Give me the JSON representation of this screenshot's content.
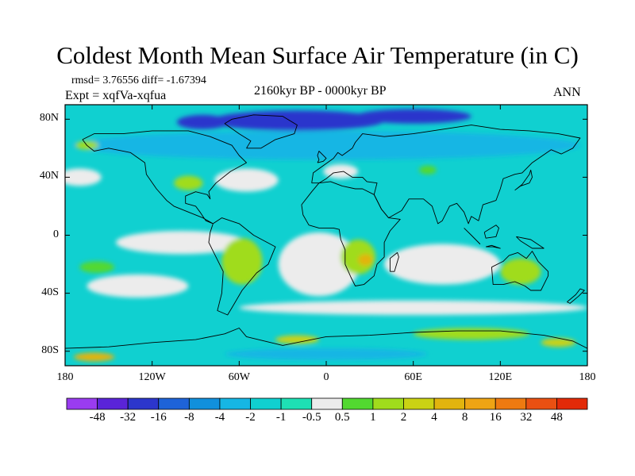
{
  "chart_data": {
    "type": "heatmap",
    "title": "Coldest Month Mean Surface Air Temperature (in C)",
    "stats": "rmsd= 3.76556 diff= -1.67394",
    "experiment": "Expt = xqfVa-xqfua",
    "period": "2160kyr BP - 0000kyr BP",
    "season": "ANN",
    "xlabel": "",
    "ylabel": "",
    "xlim": [
      -180,
      180
    ],
    "ylim": [
      -90,
      90
    ],
    "lon_ticks": [
      {
        "value": -180,
        "label": "180"
      },
      {
        "value": -120,
        "label": "120W"
      },
      {
        "value": -60,
        "label": "60W"
      },
      {
        "value": 0,
        "label": "0"
      },
      {
        "value": 60,
        "label": "60E"
      },
      {
        "value": 120,
        "label": "120E"
      },
      {
        "value": 180,
        "label": "180"
      }
    ],
    "lat_ticks": [
      {
        "value": 80,
        "label": "80N"
      },
      {
        "value": 40,
        "label": "40N"
      },
      {
        "value": 0,
        "label": "0"
      },
      {
        "value": -40,
        "label": "40S"
      },
      {
        "value": -80,
        "label": "80S"
      }
    ],
    "colorbar": {
      "levels": [
        "-48",
        "-32",
        "-16",
        "-8",
        "-4",
        "-2",
        "-1",
        "-0.5",
        "0.5",
        "1",
        "2",
        "4",
        "8",
        "16",
        "32",
        "48"
      ],
      "colors": [
        "#9a3cf0",
        "#5a24d8",
        "#2c36cc",
        "#1e63d8",
        "#1190dc",
        "#16b6e4",
        "#10d0d0",
        "#1ee0b4",
        "#ececec",
        "#52d830",
        "#a0dc1c",
        "#cad214",
        "#e2b40e",
        "#eea414",
        "#ee7a10",
        "#ea5012",
        "#e22a08"
      ]
    },
    "regions": [
      {
        "name": "arctic-basin",
        "lon": -20,
        "lat": 79,
        "rx": 60,
        "ry": 7,
        "level": 2
      },
      {
        "name": "siberia-cold",
        "lon": 60,
        "lat": 82,
        "rx": 40,
        "ry": 5,
        "level": 2
      },
      {
        "name": "canada-arctic",
        "lon": -85,
        "lat": 78,
        "rx": 18,
        "ry": 5,
        "level": 2
      },
      {
        "name": "northern-band",
        "lon": 0,
        "lat": 62,
        "rx": 175,
        "ry": 10,
        "level": 5
      },
      {
        "name": "north-atlantic-near-zero",
        "lon": -55,
        "lat": 38,
        "rx": 22,
        "ry": 8,
        "level": 8
      },
      {
        "name": "north-pacific-near-zero",
        "lon": -170,
        "lat": 40,
        "rx": 15,
        "ry": 6,
        "level": 8
      },
      {
        "name": "europe-near-zero",
        "lon": 10,
        "lat": 44,
        "rx": 12,
        "ry": 5,
        "level": 8
      },
      {
        "name": "equatorial-pacific-near-zero",
        "lon": -100,
        "lat": -5,
        "rx": 45,
        "ry": 8,
        "level": 8
      },
      {
        "name": "south-atlantic-near-zero",
        "lon": -5,
        "lat": -20,
        "rx": 28,
        "ry": 22,
        "level": 8
      },
      {
        "name": "indian-ocean-near-zero",
        "lon": 80,
        "lat": -20,
        "rx": 40,
        "ry": 14,
        "level": 8
      },
      {
        "name": "southern-ocean-near-zero",
        "lon": 60,
        "lat": -50,
        "rx": 120,
        "ry": 5,
        "level": 8
      },
      {
        "name": "south-pacific-near-zero",
        "lon": -130,
        "lat": -35,
        "rx": 35,
        "ry": 8,
        "level": 8
      },
      {
        "name": "south-america-warm",
        "lon": -58,
        "lat": -18,
        "rx": 14,
        "ry": 16,
        "level": 10
      },
      {
        "name": "africa-warm",
        "lon": 22,
        "lat": -15,
        "rx": 12,
        "ry": 12,
        "level": 10
      },
      {
        "name": "africa-hot",
        "lon": 27,
        "lat": -17,
        "rx": 5,
        "ry": 4,
        "level": 12
      },
      {
        "name": "australia-warm",
        "lon": 134,
        "lat": -25,
        "rx": 14,
        "ry": 9,
        "level": 10
      },
      {
        "name": "pacific-warm-patch",
        "lon": -158,
        "lat": -22,
        "rx": 12,
        "ry": 4,
        "level": 9
      },
      {
        "name": "north-america-warm",
        "lon": -95,
        "lat": 36,
        "rx": 10,
        "ry": 5,
        "level": 10
      },
      {
        "name": "asia-warm",
        "lon": 70,
        "lat": 45,
        "rx": 6,
        "ry": 3,
        "level": 9
      },
      {
        "name": "southern-ocean-warm",
        "lon": 100,
        "lat": -68,
        "rx": 40,
        "ry": 4,
        "level": 10
      },
      {
        "name": "weddell-warm",
        "lon": -20,
        "lat": -72,
        "rx": 15,
        "ry": 3,
        "level": 11
      },
      {
        "name": "ross-sea-hot",
        "lon": -160,
        "lat": -84,
        "rx": 14,
        "ry": 3,
        "level": 12
      },
      {
        "name": "ross-sea-warm",
        "lon": 160,
        "lat": -74,
        "rx": 12,
        "ry": 3,
        "level": 11
      },
      {
        "name": "antarctic-cold",
        "lon": 0,
        "lat": -82,
        "rx": 70,
        "ry": 4,
        "level": 5
      },
      {
        "name": "alaska-warm",
        "lon": -165,
        "lat": 62,
        "rx": 8,
        "ry": 3,
        "level": 10
      }
    ]
  }
}
